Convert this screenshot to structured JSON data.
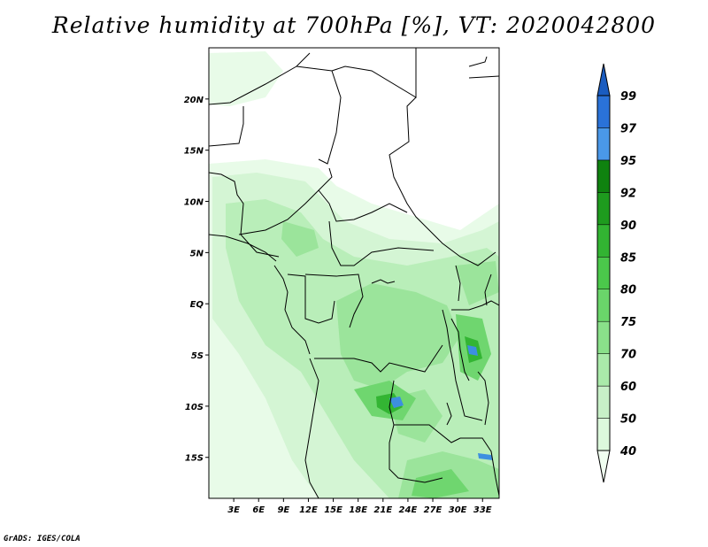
{
  "title": "Relative humidity at 700hPa [%], VT: 2020042800",
  "credit": "GrADS: IGES/COLA",
  "map": {
    "lat_labels": [
      "20N",
      "15N",
      "10N",
      "5N",
      "EQ",
      "5S",
      "10S",
      "15S"
    ],
    "lon_labels": [
      "3E",
      "6E",
      "9E",
      "12E",
      "15E",
      "18E",
      "21E",
      "24E",
      "27E",
      "30E",
      "33E"
    ],
    "lat_values": [
      20,
      15,
      10,
      5,
      0,
      -5,
      -10,
      -15
    ],
    "lon_values": [
      3,
      6,
      9,
      12,
      15,
      18,
      21,
      24,
      27,
      30,
      33
    ],
    "lon_range": [
      0,
      35
    ],
    "lat_range": [
      -19,
      25
    ]
  },
  "colorbar": {
    "labels": [
      "99",
      "97",
      "95",
      "92",
      "90",
      "85",
      "80",
      "75",
      "70",
      "60",
      "50",
      "40"
    ],
    "levels": [
      40,
      50,
      60,
      70,
      75,
      80,
      85,
      90,
      92,
      95,
      97,
      99
    ],
    "colors": [
      "#f0fff0",
      "#dcf8dc",
      "#c8f0c8",
      "#aaeaaa",
      "#8ae08a",
      "#6ad56a",
      "#4bc84b",
      "#32b432",
      "#1e9b1e",
      "#0f820f",
      "#4a98e8",
      "#2a72d8",
      "#1a5cc0"
    ]
  }
}
